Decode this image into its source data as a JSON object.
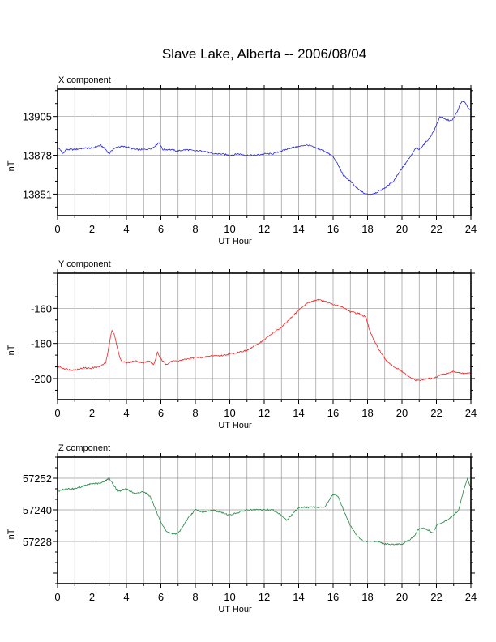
{
  "title": "Slave Lake, Alberta -- 2006/08/04",
  "chart_data": [
    {
      "type": "line",
      "panel_label": "X component",
      "xlabel": "UT Hour",
      "ylabel": "nT",
      "color": "#2222dd",
      "xlim": [
        0,
        24
      ],
      "ylim": [
        13836,
        13924
      ],
      "xticks": [
        0,
        2,
        4,
        6,
        8,
        10,
        12,
        14,
        16,
        18,
        20,
        22,
        24
      ],
      "yticks": [
        13851,
        13878,
        13905
      ],
      "grid": true,
      "series": [
        {
          "x": [
            0,
            0.1,
            0.3,
            0.5,
            1,
            1.5,
            2,
            2.5,
            2.8,
            3.0,
            3.2,
            3.5,
            4,
            4.5,
            5,
            5.5,
            5.9,
            6.1,
            6.5,
            7,
            7.5,
            8,
            8.5,
            9,
            9.5,
            10,
            10.5,
            11,
            11.5,
            12,
            12.5,
            13,
            13.5,
            14,
            14.3,
            14.6,
            15,
            15.5,
            16,
            16.3,
            16.6,
            17,
            17.3,
            17.6,
            17.9,
            18.2,
            18.5,
            18.8,
            19.1,
            19.5,
            20,
            20.5,
            20.8,
            21,
            21.3,
            21.6,
            21.9,
            22.2,
            22.5,
            22.9,
            23.2,
            23.4,
            23.6,
            23.8,
            24
          ],
          "y": [
            13882,
            13883,
            13879,
            13882,
            13882,
            13883,
            13883,
            13885,
            13882,
            13879,
            13882,
            13884,
            13884,
            13882,
            13882,
            13883,
            13887,
            13882,
            13882,
            13881,
            13882,
            13881,
            13881,
            13879,
            13879,
            13878,
            13879,
            13878,
            13878,
            13879,
            13879,
            13881,
            13883,
            13884,
            13885,
            13885,
            13883,
            13881,
            13877,
            13871,
            13864,
            13860,
            13856,
            13853,
            13851,
            13851,
            13852,
            13854,
            13856,
            13860,
            13869,
            13877,
            13883,
            13882,
            13886,
            13890,
            13896,
            13905,
            13903,
            13902,
            13908,
            13914,
            13916,
            13912,
            13909
          ]
        }
      ]
    },
    {
      "type": "line",
      "panel_label": "Y component",
      "xlabel": "UT Hour",
      "ylabel": "nT",
      "color": "#ee2222",
      "xlim": [
        0,
        24
      ],
      "ylim": [
        -212,
        -140
      ],
      "xticks": [
        0,
        2,
        4,
        6,
        8,
        10,
        12,
        14,
        16,
        18,
        20,
        22,
        24
      ],
      "yticks": [
        -200,
        -180,
        -160
      ],
      "grid": true,
      "series": [
        {
          "x": [
            0,
            0.3,
            0.7,
            1,
            1.5,
            2,
            2.5,
            2.8,
            3.0,
            3.15,
            3.3,
            3.5,
            3.7,
            4,
            4.5,
            5,
            5.3,
            5.6,
            5.8,
            6.0,
            6.3,
            6.6,
            7,
            7.5,
            8,
            8.5,
            9,
            9.5,
            10,
            10.5,
            11,
            11.5,
            12,
            12.5,
            13,
            13.5,
            14,
            14.5,
            14.8,
            15.1,
            15.5,
            16,
            16.5,
            17,
            17.5,
            17.9,
            18.1,
            18.4,
            18.7,
            19,
            19.5,
            20,
            20.4,
            20.8,
            21.1,
            21.5,
            21.8,
            22.2,
            22.6,
            23,
            23.5,
            24
          ],
          "y": [
            -193,
            -194,
            -195,
            -195,
            -194,
            -194,
            -193,
            -191,
            -181,
            -172,
            -175,
            -184,
            -190,
            -191,
            -190,
            -191,
            -190,
            -192,
            -185,
            -189,
            -192,
            -190,
            -190,
            -189,
            -188,
            -188,
            -187,
            -187,
            -186,
            -185,
            -184,
            -181,
            -178,
            -174,
            -171,
            -166,
            -161,
            -157,
            -156,
            -155,
            -156,
            -158,
            -159,
            -162,
            -163,
            -165,
            -172,
            -179,
            -184,
            -189,
            -193,
            -196,
            -199,
            -201,
            -201,
            -200,
            -200,
            -198,
            -197,
            -196,
            -197,
            -197
          ]
        }
      ]
    },
    {
      "type": "line",
      "panel_label": "Z component",
      "xlabel": "UT Hour",
      "ylabel": "nT",
      "color": "#228844",
      "xlim": [
        0,
        24
      ],
      "ylim": [
        57212,
        57260
      ],
      "xticks": [
        0,
        2,
        4,
        6,
        8,
        10,
        12,
        14,
        16,
        18,
        20,
        22,
        24
      ],
      "yticks": [
        57228,
        57240,
        57252
      ],
      "grid": true,
      "series": [
        {
          "x": [
            0,
            0.5,
            1,
            1.5,
            2,
            2.5,
            3,
            3.2,
            3.5,
            4,
            4.5,
            5,
            5.4,
            5.7,
            6,
            6.3,
            6.6,
            7,
            7.3,
            7.6,
            8,
            8.5,
            9,
            9.5,
            10,
            10.5,
            11,
            11.5,
            12,
            12.5,
            13,
            13.3,
            13.6,
            14,
            14.5,
            15,
            15.5,
            16,
            16.3,
            16.6,
            17,
            17.4,
            17.8,
            18.2,
            18.6,
            19,
            19.5,
            20,
            20.3,
            20.7,
            21,
            21.3,
            21.6,
            21.8,
            22,
            22.3,
            22.6,
            23,
            23.3,
            23.6,
            23.8,
            24
          ],
          "y": [
            57247,
            57248,
            57248,
            57249,
            57250,
            57250,
            57252,
            57250,
            57247,
            57248,
            57246,
            57247,
            57245,
            57240,
            57235,
            57232,
            57231,
            57231,
            57234,
            57237,
            57240,
            57239,
            57240,
            57239,
            57238,
            57239,
            57240,
            57240,
            57240,
            57240,
            57238,
            57236,
            57238,
            57241,
            57241,
            57241,
            57241,
            57246,
            57245,
            57240,
            57234,
            57230,
            57228,
            57228,
            57228,
            57227,
            57227,
            57227,
            57228,
            57230,
            57233,
            57233,
            57232,
            57231,
            57234,
            57235,
            57236,
            57238,
            57240,
            57248,
            57252,
            57248
          ]
        }
      ]
    }
  ]
}
